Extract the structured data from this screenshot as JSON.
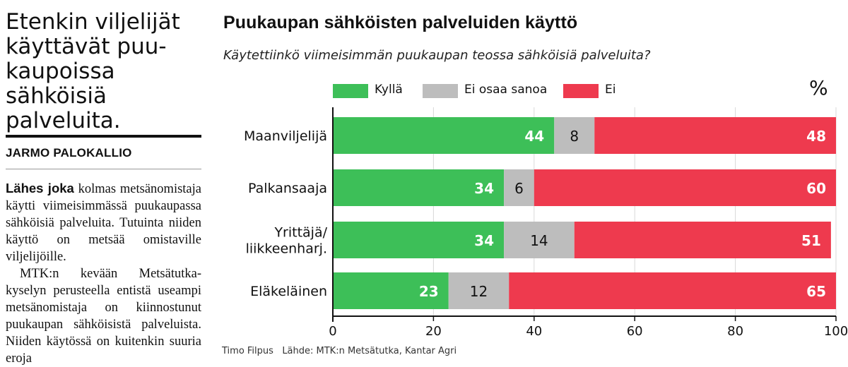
{
  "headline": [
    "Etenkin viljelijät",
    "käyttävät puu-",
    "kaupoissa sähköisiä",
    "palveluita."
  ],
  "byline": "JARMO PALOKALLIO",
  "article": {
    "lead": "Lähes joka",
    "p1": " kolmas metsänomistaja käytti viimeisimmässä puukaupassa sähköisiä palveluita. Tutuinta niiden käyttö on metsää omistaville viljelijöille.",
    "p2": "MTK:n kevään Metsätutka-kyselyn perusteella entistä useampi metsänomistaja on kiinnostunut puukaupan sähköisistä palveluista. Niiden käytössä on kuitenkin suuria eroja"
  },
  "unit": "%",
  "footer": "Timo Filpus   Lähde: MTK:n Metsätutka, Kantar Agri",
  "colors": {
    "yes": "#3dbf58",
    "unsure": "#bdbdbd",
    "no": "#ee3a4e"
  },
  "chart_data": {
    "type": "bar",
    "orientation": "horizontal-stacked",
    "title": "Puukaupan sähköisten palveluiden käyttö",
    "subtitle": "Käytettiinkö viimeisimmän puukaupan teossa sähköisiä palveluita?",
    "categories": [
      "Maanviljelijä",
      "Palkansaaja",
      "Yrittäjä/\nliikkeenharj.",
      "Eläkeläinen"
    ],
    "series": [
      {
        "name": "Kyllä",
        "values": [
          44,
          34,
          34,
          23
        ]
      },
      {
        "name": "Ei osaa sanoa",
        "values": [
          8,
          6,
          14,
          12
        ]
      },
      {
        "name": "Ei",
        "values": [
          48,
          60,
          51,
          65
        ]
      }
    ],
    "xlim": [
      0,
      100
    ],
    "xticks": [
      0,
      20,
      40,
      60,
      80,
      100
    ],
    "grid": true,
    "legend": "top"
  }
}
